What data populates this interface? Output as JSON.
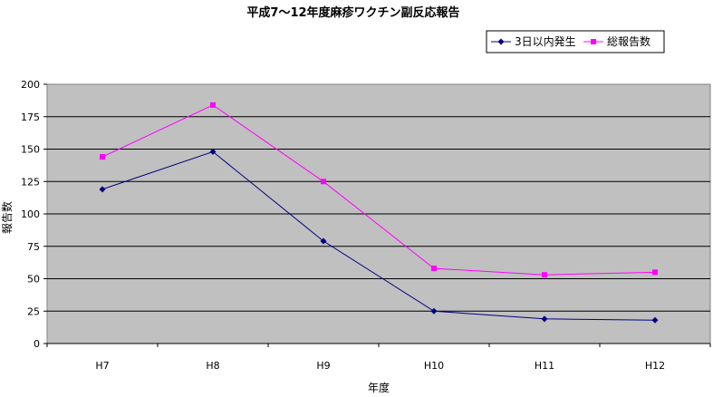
{
  "chart_data": {
    "type": "line",
    "title": "平成7～12年度麻疹ワクチン副反応報告",
    "xlabel": "年度",
    "ylabel": "報告数",
    "categories": [
      "H7",
      "H8",
      "H9",
      "H10",
      "H11",
      "H12"
    ],
    "ylim": [
      0,
      200
    ],
    "yticks": [
      0,
      25,
      50,
      75,
      100,
      125,
      150,
      175,
      200
    ],
    "grid": true,
    "legend_position": "top-right",
    "plot_background": "#C0C0C0",
    "series": [
      {
        "name": "3日以内発生",
        "values": [
          119,
          148,
          79,
          25,
          19,
          18
        ],
        "color": "#000080",
        "marker": "diamond"
      },
      {
        "name": "総報告数",
        "values": [
          144,
          184,
          125,
          58,
          53,
          55
        ],
        "color": "#FF00FF",
        "marker": "square"
      }
    ]
  }
}
